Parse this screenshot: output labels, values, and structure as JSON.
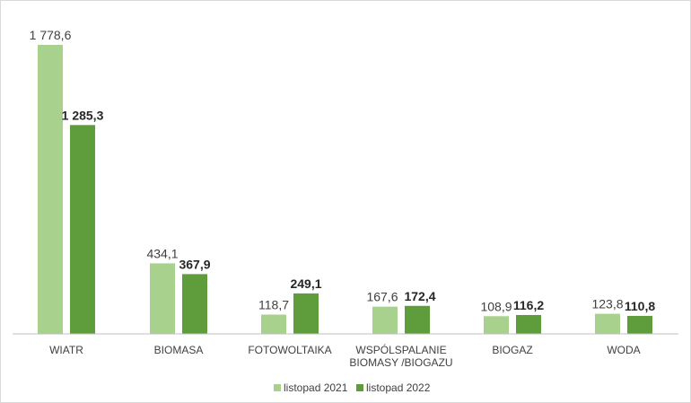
{
  "chart_data": {
    "type": "bar",
    "title": "",
    "xlabel": "",
    "ylabel": "",
    "ylim": [
      0,
      1850
    ],
    "grid": false,
    "legend_position": "bottom",
    "categories": [
      [
        "WIATR"
      ],
      [
        "BIOMASA"
      ],
      [
        "FOTOWOLTAIKA"
      ],
      [
        "WSPÓLSPALANIE",
        "BIOMASY /BIOGAZU"
      ],
      [
        "BIOGAZ"
      ],
      [
        "WODA"
      ]
    ],
    "series": [
      {
        "name": "listopad 2021",
        "color": "#a9d18e",
        "values": [
          1778.6,
          434.1,
          118.7,
          167.6,
          108.9,
          123.8
        ],
        "labels": [
          "1 778,6",
          "434,1",
          "118,7",
          "167,6",
          "108,9",
          "123,8"
        ]
      },
      {
        "name": "listopad 2022",
        "color": "#5e9c3c",
        "values": [
          1285.3,
          367.9,
          249.1,
          172.4,
          116.2,
          110.8
        ],
        "labels": [
          "1 285,3",
          "367,9",
          "249,1",
          "172,4",
          "116,2",
          "110,8"
        ]
      }
    ]
  }
}
